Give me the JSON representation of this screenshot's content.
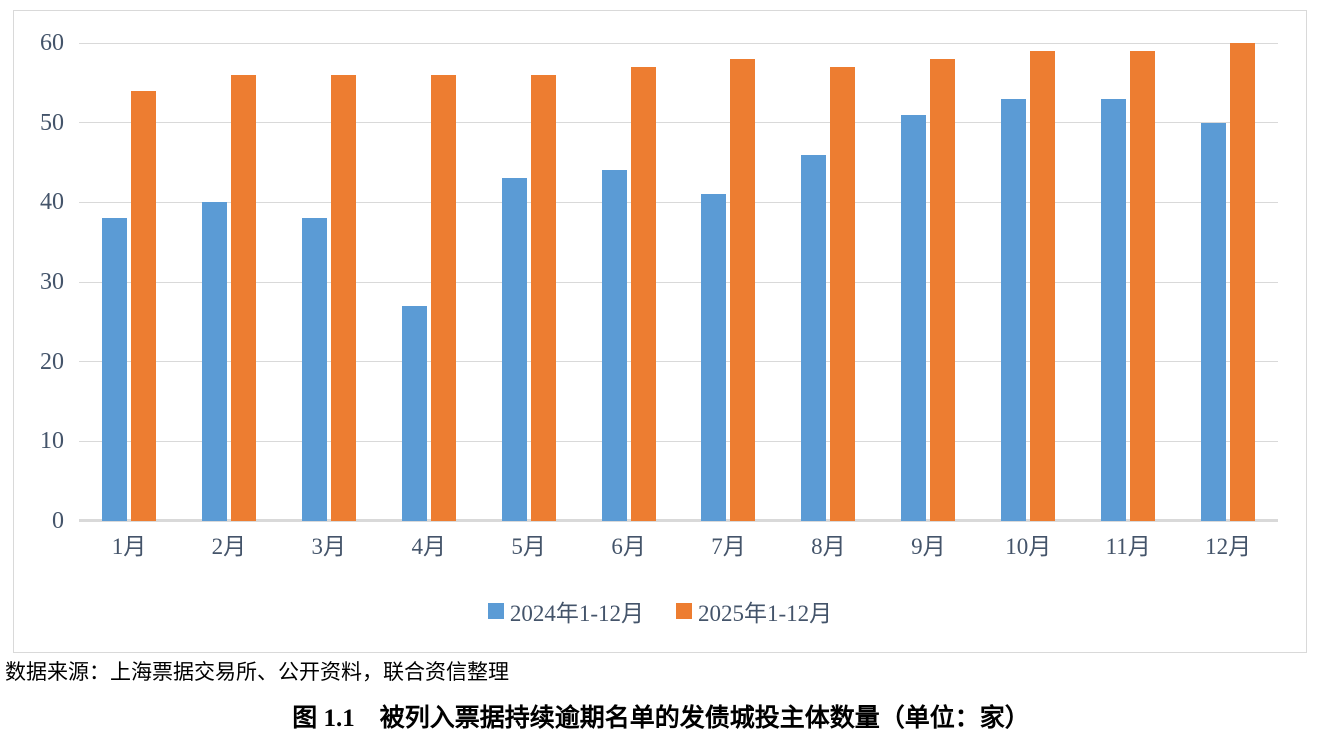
{
  "chart_data": {
    "type": "bar",
    "title": "图 1.1　被列入票据持续逾期名单的发债城投主体数量（单位：家）",
    "categories": [
      "1月",
      "2月",
      "3月",
      "4月",
      "5月",
      "6月",
      "7月",
      "8月",
      "9月",
      "10月",
      "11月",
      "12月"
    ],
    "series": [
      {
        "name": "2024年1-12月",
        "color": "#5B9BD5",
        "values": [
          38,
          40,
          38,
          27,
          43,
          44,
          41,
          46,
          51,
          53,
          53,
          50
        ]
      },
      {
        "name": "2025年1-12月",
        "color": "#ED7D31",
        "values": [
          54,
          56,
          56,
          56,
          56,
          57,
          58,
          57,
          58,
          59,
          59,
          60
        ]
      }
    ],
    "xlabel": "",
    "ylabel": "",
    "ylim": [
      0,
      60
    ],
    "yticks": [
      0,
      10,
      20,
      30,
      40,
      50,
      60
    ],
    "grid": true,
    "legend_position": "bottom"
  },
  "source_note": "数据来源：上海票据交易所、公开资料，联合资信整理",
  "caption": "图 1.1　被列入票据持续逾期名单的发债城投主体数量（单位：家）",
  "colors": {
    "series_2024": "#5B9BD5",
    "series_2025": "#ED7D31",
    "gridline": "#D9D9D9",
    "axis_text": "#44546A"
  }
}
